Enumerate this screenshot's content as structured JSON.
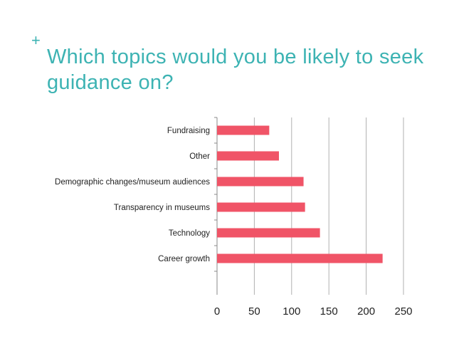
{
  "slide": {
    "plus_glyph": "+",
    "title": "Which topics would you be likely to seek guidance on?"
  },
  "colors": {
    "accent": "#3db3b3",
    "bar": "#f05467",
    "grid": "#b0b0b0",
    "text": "#222222"
  },
  "chart_data": {
    "type": "bar",
    "orientation": "horizontal",
    "title": "",
    "xlabel": "",
    "ylabel": "",
    "categories": [
      "Fundraising",
      "Other",
      "Demographic changes/museum audiences",
      "Transparency in museums",
      "Technology",
      "Career growth"
    ],
    "values": [
      70,
      83,
      116,
      118,
      138,
      222
    ],
    "xlim": [
      0,
      250
    ],
    "xticks": [
      0,
      50,
      100,
      150,
      200,
      250
    ],
    "grid": true,
    "legend": "none"
  }
}
